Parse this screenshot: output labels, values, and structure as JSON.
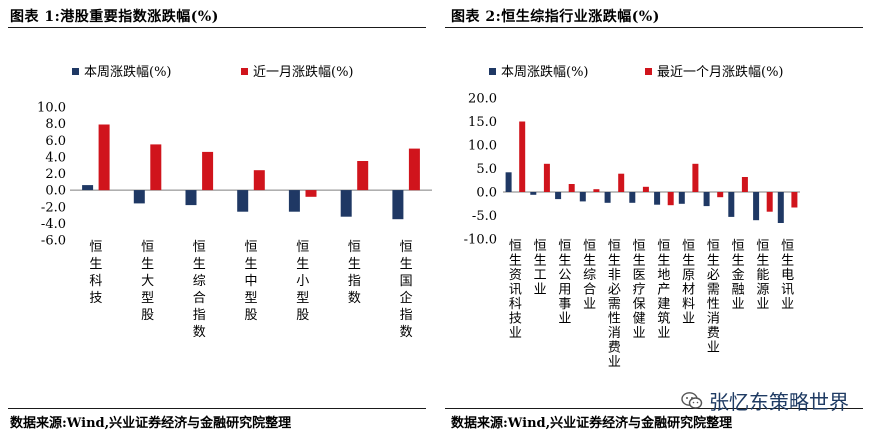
{
  "left": {
    "title": "图表 1:港股重要指数涨跌幅(%)",
    "source": "数据来源:Wind,兴业证券经济与金融研究院整理"
  },
  "right": {
    "title": "图表 2:恒生综指行业涨跌幅(%)",
    "source": "数据来源:Wind,兴业证券经济与金融研究院整理"
  },
  "watermark": {
    "text": "张忆东策略世界",
    "icon": "wechat-icon"
  },
  "colors": {
    "navy": "#1f3864",
    "red": "#d0141c"
  },
  "chart_data": [
    {
      "type": "bar",
      "categories": [
        "恒生科技",
        "恒生大型股",
        "恒生综合指数",
        "恒生中型股",
        "恒生小型股",
        "恒生指数",
        "恒生国企指数"
      ],
      "series": [
        {
          "name": "本周涨跌幅(%)",
          "values": [
            0.6,
            -1.6,
            -1.8,
            -2.6,
            -2.6,
            -3.2,
            -3.5
          ]
        },
        {
          "name": "近一月涨跌幅(%)",
          "values": [
            7.9,
            5.5,
            4.6,
            2.4,
            -0.8,
            3.5,
            5.0
          ]
        }
      ],
      "yticks": [
        "10.0",
        "8.0",
        "6.0",
        "4.0",
        "2.0",
        "0.0",
        "-2.0",
        "-4.0",
        "-6.0"
      ],
      "ylim": [
        -6,
        10
      ],
      "legend": "top"
    },
    {
      "type": "bar",
      "categories": [
        "恒生资讯科技业",
        "恒生工业",
        "恒生公用事业",
        "恒生综合业",
        "恒生非必需性消费业",
        "恒生医疗保健业",
        "恒生地产建筑业",
        "恒生原材料业",
        "恒生必需性消费业",
        "恒生金融业",
        "恒生能源业",
        "恒生电讯业"
      ],
      "series": [
        {
          "name": "本周涨跌幅(%)",
          "values": [
            4.2,
            -0.6,
            -1.5,
            -2.0,
            -2.3,
            -2.3,
            -2.7,
            -2.5,
            -3.0,
            -5.3,
            -6.0,
            -6.6
          ]
        },
        {
          "name": "最近一个月涨跌幅(%)",
          "values": [
            15.0,
            6.0,
            1.7,
            0.6,
            3.9,
            1.1,
            -2.8,
            6.0,
            -1.1,
            3.2,
            -4.2,
            -3.3
          ]
        }
      ],
      "yticks": [
        "20.0",
        "15.0",
        "10.0",
        "5.0",
        "0.0",
        "-5.0",
        "-10.0"
      ],
      "ylim": [
        -10,
        20
      ],
      "legend": "top"
    }
  ]
}
